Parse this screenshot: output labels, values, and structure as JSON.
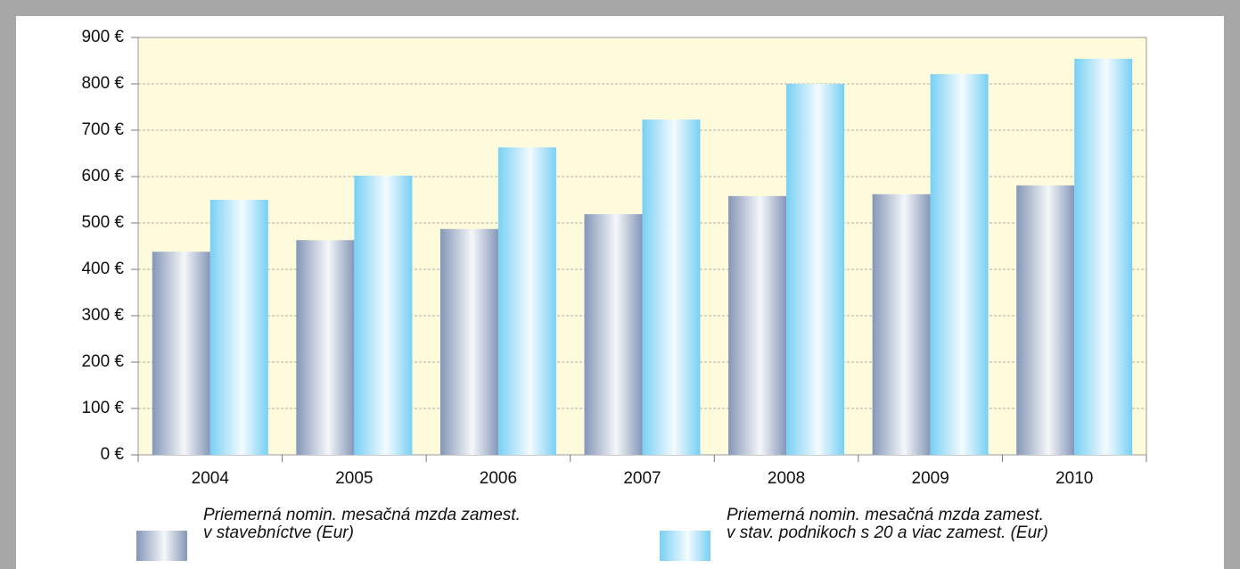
{
  "chart_data": {
    "type": "bar",
    "categories": [
      "2004",
      "2005",
      "2006",
      "2007",
      "2008",
      "2009",
      "2010"
    ],
    "series": [
      {
        "name": "Priemerná nomin. mesačná mzda zamest.\nv stavebníctve (Eur)",
        "color": "#8596b8",
        "values": [
          438,
          463,
          487,
          519,
          558,
          562,
          581
        ]
      },
      {
        "name": "Priemerná nomin. mesačná mzda zamest.\nv stav. podnikoch s 20 a viac zamest. (Eur)",
        "color": "#78d0f4",
        "values": [
          550,
          602,
          663,
          723,
          800,
          821,
          854
        ]
      }
    ],
    "ylim": [
      0,
      900
    ],
    "yticks": [
      {
        "value": 0,
        "label": "0 €"
      },
      {
        "value": 100,
        "label": "100 €"
      },
      {
        "value": 200,
        "label": "200 €"
      },
      {
        "value": 300,
        "label": "300 €"
      },
      {
        "value": 400,
        "label": "400 €"
      },
      {
        "value": 500,
        "label": "500 €"
      },
      {
        "value": 600,
        "label": "600 €"
      },
      {
        "value": 700,
        "label": "700 €"
      },
      {
        "value": 800,
        "label": "800 €"
      },
      {
        "value": 900,
        "label": "900 €"
      }
    ],
    "grid": true
  }
}
